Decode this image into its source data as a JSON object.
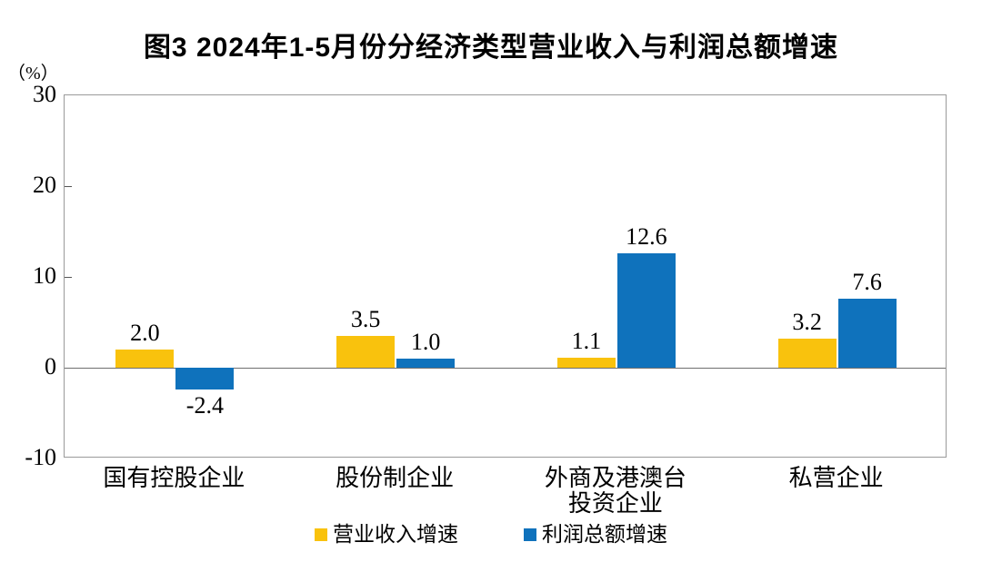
{
  "title": "图3  2024年1-5月份分经济类型营业收入与利润总额增速",
  "y_axis": {
    "unit": "（%）",
    "ticks": [
      30,
      20,
      10,
      0,
      -10
    ]
  },
  "chart_data": {
    "type": "bar",
    "title": "图3  2024年1-5月份分经济类型营业收入与利润总额增速",
    "categories": [
      "国有控股企业",
      "股份制企业",
      "外商及港澳台\n投资企业",
      "私营企业"
    ],
    "series": [
      {
        "name": "营业收入增速",
        "color": "#F9C20D",
        "values": [
          2.0,
          3.5,
          1.1,
          3.2
        ]
      },
      {
        "name": "利润总额增速",
        "color": "#0F72BC",
        "values": [
          -2.4,
          1.0,
          12.6,
          7.6
        ]
      }
    ],
    "ylabel": "（%）",
    "ylim": [
      -10,
      30
    ],
    "y_ticks": [
      30,
      20,
      10,
      0,
      -10
    ],
    "grid": false,
    "legend_position": "bottom",
    "value_label_decimals": 1
  }
}
